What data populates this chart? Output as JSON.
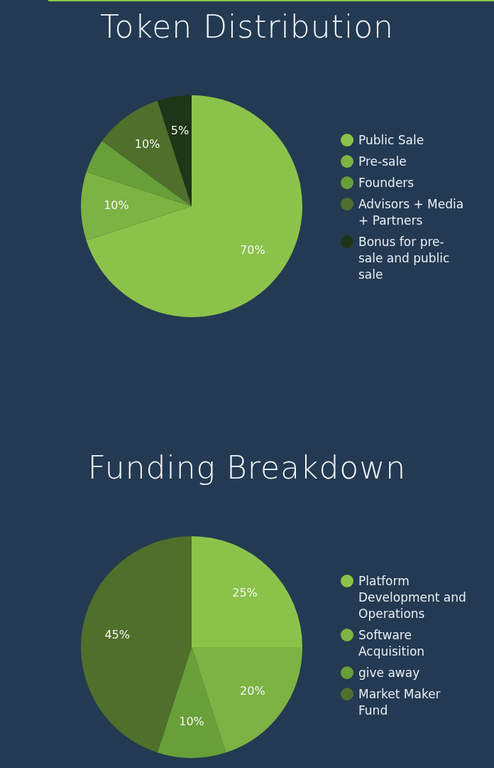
{
  "chart_data": [
    {
      "type": "pie",
      "title": "Token Distribution",
      "categories": [
        "Public Sale",
        "Pre-sale",
        "Founders",
        "Advisors + Media + Partners",
        "Bonus for pre-sale and public sale"
      ],
      "values": [
        70,
        10,
        5,
        10,
        5
      ],
      "colors": [
        "#8bc34a",
        "#7cb342",
        "#689f38",
        "#4f6f2b",
        "#1f3517"
      ],
      "value_labels": [
        "70%",
        "10%",
        null,
        "10%",
        "5%"
      ],
      "legend": "right"
    },
    {
      "type": "pie",
      "title": "Funding Breakdown",
      "categories": [
        "Platform Development and Operations",
        "Software Acquisition",
        "give away",
        "Market Maker Fund"
      ],
      "values": [
        25,
        20,
        10,
        45
      ],
      "colors": [
        "#8bc34a",
        "#7cb342",
        "#689f38",
        "#4f6f2b"
      ],
      "value_labels": [
        "25%",
        "20%",
        "10%",
        "45%"
      ],
      "legend": "right"
    }
  ]
}
